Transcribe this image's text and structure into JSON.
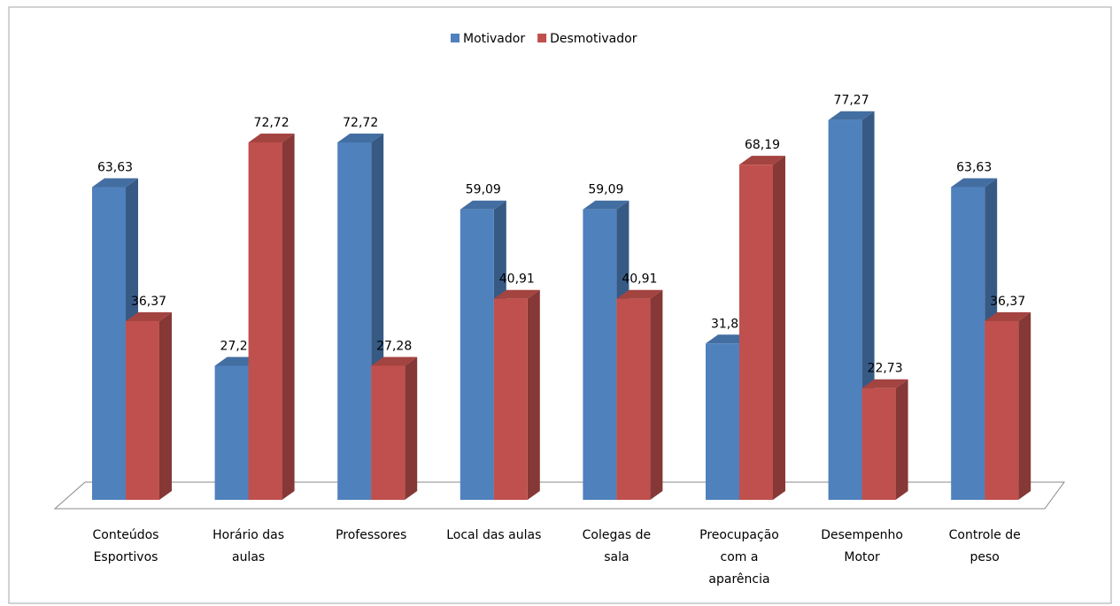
{
  "chart_data": {
    "type": "bar3d",
    "categories": [
      [
        "Conteúdos",
        "Esportivos"
      ],
      [
        "Horário das",
        "aulas"
      ],
      [
        "Professores"
      ],
      [
        "Local das aulas"
      ],
      [
        "Colegas de",
        "sala"
      ],
      [
        "Preocupação",
        "com a",
        "aparência"
      ],
      [
        "Desempenho",
        "Motor"
      ],
      [
        "Controle de",
        "peso"
      ]
    ],
    "series": [
      {
        "name": "Motivador",
        "color": "#4f81bd",
        "values": [
          63.63,
          27.28,
          72.72,
          59.09,
          59.09,
          31.81,
          77.27,
          63.63
        ],
        "value_labels": [
          "63,63",
          "27,28",
          "72,72",
          "59,09",
          "59,09",
          "31,81",
          "77,27",
          "63,63"
        ]
      },
      {
        "name": "Desmotivador",
        "color": "#c0504d",
        "values": [
          36.37,
          72.72,
          27.28,
          40.91,
          40.91,
          68.19,
          22.73,
          36.37
        ],
        "value_labels": [
          "36,37",
          "72,72",
          "27,28",
          "40,91",
          "40,91",
          "68,19",
          "22,73",
          "36,37"
        ]
      }
    ],
    "ylim": [
      0,
      90
    ],
    "legend": "top"
  }
}
